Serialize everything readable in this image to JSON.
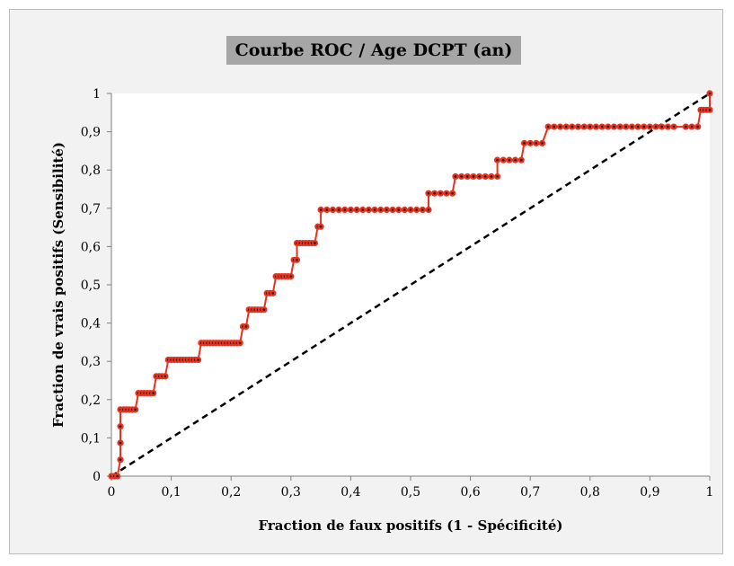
{
  "chart_data": {
    "type": "line",
    "title": "Courbe ROC / Age DCPT (an)",
    "xlabel": "Fraction de faux positifs (1 - Spécificité)",
    "ylabel": "Fraction de vrais positifs (Sensibilité)",
    "xlim": [
      0,
      1
    ],
    "ylim": [
      0,
      1
    ],
    "x_ticks": [
      "0",
      "0,1",
      "0,2",
      "0,3",
      "0,4",
      "0,5",
      "0,6",
      "0,7",
      "0,8",
      "0,9",
      "1"
    ],
    "y_ticks": [
      "0",
      "0,1",
      "0,2",
      "0,3",
      "0,4",
      "0,5",
      "0,6",
      "0,7",
      "0,8",
      "0,9",
      "1"
    ],
    "grid": false,
    "legend": "none",
    "series": [
      {
        "color": "#e8321e",
        "marker_color": "#e8321e",
        "values_xy": [
          [
            0,
            0
          ],
          [
            0.005,
            0
          ],
          [
            0.01,
            0
          ],
          [
            0.015,
            0.043
          ],
          [
            0.015,
            0.087
          ],
          [
            0.015,
            0.13
          ],
          [
            0.015,
            0.174
          ],
          [
            0.02,
            0.174
          ],
          [
            0.025,
            0.174
          ],
          [
            0.03,
            0.174
          ],
          [
            0.035,
            0.174
          ],
          [
            0.04,
            0.174
          ],
          [
            0.045,
            0.217
          ],
          [
            0.05,
            0.217
          ],
          [
            0.055,
            0.217
          ],
          [
            0.06,
            0.217
          ],
          [
            0.065,
            0.217
          ],
          [
            0.07,
            0.217
          ],
          [
            0.075,
            0.261
          ],
          [
            0.08,
            0.261
          ],
          [
            0.085,
            0.261
          ],
          [
            0.09,
            0.261
          ],
          [
            0.095,
            0.304
          ],
          [
            0.1,
            0.304
          ],
          [
            0.105,
            0.304
          ],
          [
            0.11,
            0.304
          ],
          [
            0.115,
            0.304
          ],
          [
            0.12,
            0.304
          ],
          [
            0.125,
            0.304
          ],
          [
            0.13,
            0.304
          ],
          [
            0.135,
            0.304
          ],
          [
            0.14,
            0.304
          ],
          [
            0.145,
            0.304
          ],
          [
            0.15,
            0.348
          ],
          [
            0.155,
            0.348
          ],
          [
            0.16,
            0.348
          ],
          [
            0.165,
            0.348
          ],
          [
            0.17,
            0.348
          ],
          [
            0.175,
            0.348
          ],
          [
            0.18,
            0.348
          ],
          [
            0.185,
            0.348
          ],
          [
            0.19,
            0.348
          ],
          [
            0.195,
            0.348
          ],
          [
            0.2,
            0.348
          ],
          [
            0.205,
            0.348
          ],
          [
            0.21,
            0.348
          ],
          [
            0.215,
            0.348
          ],
          [
            0.22,
            0.391
          ],
          [
            0.225,
            0.391
          ],
          [
            0.23,
            0.435
          ],
          [
            0.235,
            0.435
          ],
          [
            0.24,
            0.435
          ],
          [
            0.245,
            0.435
          ],
          [
            0.25,
            0.435
          ],
          [
            0.255,
            0.435
          ],
          [
            0.26,
            0.478
          ],
          [
            0.265,
            0.478
          ],
          [
            0.27,
            0.478
          ],
          [
            0.275,
            0.522
          ],
          [
            0.28,
            0.522
          ],
          [
            0.285,
            0.522
          ],
          [
            0.29,
            0.522
          ],
          [
            0.295,
            0.522
          ],
          [
            0.3,
            0.522
          ],
          [
            0.305,
            0.565
          ],
          [
            0.31,
            0.565
          ],
          [
            0.31,
            0.609
          ],
          [
            0.315,
            0.609
          ],
          [
            0.32,
            0.609
          ],
          [
            0.325,
            0.609
          ],
          [
            0.33,
            0.609
          ],
          [
            0.335,
            0.609
          ],
          [
            0.34,
            0.609
          ],
          [
            0.345,
            0.652
          ],
          [
            0.35,
            0.652
          ],
          [
            0.35,
            0.696
          ],
          [
            0.36,
            0.696
          ],
          [
            0.37,
            0.696
          ],
          [
            0.38,
            0.696
          ],
          [
            0.39,
            0.696
          ],
          [
            0.4,
            0.696
          ],
          [
            0.41,
            0.696
          ],
          [
            0.42,
            0.696
          ],
          [
            0.43,
            0.696
          ],
          [
            0.44,
            0.696
          ],
          [
            0.45,
            0.696
          ],
          [
            0.46,
            0.696
          ],
          [
            0.47,
            0.696
          ],
          [
            0.48,
            0.696
          ],
          [
            0.49,
            0.696
          ],
          [
            0.5,
            0.696
          ],
          [
            0.51,
            0.696
          ],
          [
            0.52,
            0.696
          ],
          [
            0.53,
            0.696
          ],
          [
            0.53,
            0.739
          ],
          [
            0.54,
            0.739
          ],
          [
            0.55,
            0.739
          ],
          [
            0.56,
            0.739
          ],
          [
            0.57,
            0.739
          ],
          [
            0.575,
            0.783
          ],
          [
            0.585,
            0.783
          ],
          [
            0.595,
            0.783
          ],
          [
            0.605,
            0.783
          ],
          [
            0.615,
            0.783
          ],
          [
            0.625,
            0.783
          ],
          [
            0.635,
            0.783
          ],
          [
            0.645,
            0.783
          ],
          [
            0.645,
            0.826
          ],
          [
            0.655,
            0.826
          ],
          [
            0.665,
            0.826
          ],
          [
            0.675,
            0.826
          ],
          [
            0.685,
            0.826
          ],
          [
            0.69,
            0.87
          ],
          [
            0.7,
            0.87
          ],
          [
            0.71,
            0.87
          ],
          [
            0.72,
            0.87
          ],
          [
            0.73,
            0.913
          ],
          [
            0.74,
            0.913
          ],
          [
            0.75,
            0.913
          ],
          [
            0.76,
            0.913
          ],
          [
            0.77,
            0.913
          ],
          [
            0.78,
            0.913
          ],
          [
            0.79,
            0.913
          ],
          [
            0.8,
            0.913
          ],
          [
            0.81,
            0.913
          ],
          [
            0.82,
            0.913
          ],
          [
            0.83,
            0.913
          ],
          [
            0.84,
            0.913
          ],
          [
            0.85,
            0.913
          ],
          [
            0.86,
            0.913
          ],
          [
            0.87,
            0.913
          ],
          [
            0.88,
            0.913
          ],
          [
            0.89,
            0.913
          ],
          [
            0.9,
            0.913
          ],
          [
            0.91,
            0.913
          ],
          [
            0.92,
            0.913
          ],
          [
            0.93,
            0.913
          ],
          [
            0.94,
            0.913
          ],
          [
            0.96,
            0.913
          ],
          [
            0.97,
            0.913
          ],
          [
            0.98,
            0.913
          ],
          [
            0.985,
            0.957
          ],
          [
            0.99,
            0.957
          ],
          [
            0.995,
            0.957
          ],
          [
            1,
            0.957
          ],
          [
            1,
            1
          ]
        ]
      },
      {
        "color": "#000000",
        "style": "dashed",
        "values_xy": [
          [
            0,
            0
          ],
          [
            1,
            1
          ]
        ]
      }
    ]
  }
}
